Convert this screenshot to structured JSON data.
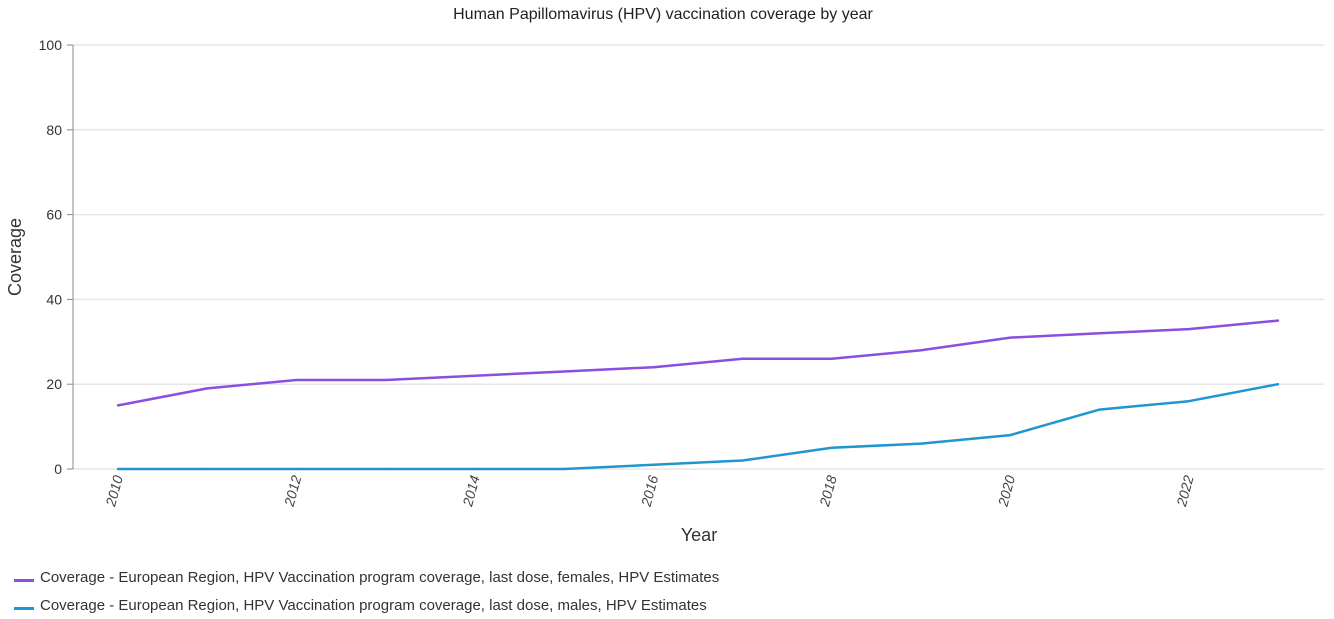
{
  "chart_data": {
    "type": "line",
    "title": "Human Papillomavirus (HPV) vaccination coverage by year",
    "xlabel": "Year",
    "ylabel": "Coverage",
    "x": [
      2010,
      2011,
      2012,
      2013,
      2014,
      2015,
      2016,
      2017,
      2018,
      2019,
      2020,
      2021,
      2022,
      2023
    ],
    "xticks": [
      "2010",
      "2012",
      "2014",
      "2016",
      "2018",
      "2020",
      "2022"
    ],
    "yticks": [
      "0",
      "20",
      "40",
      "60",
      "80",
      "100"
    ],
    "ylim": [
      0,
      100
    ],
    "grid": true,
    "legend_position": "bottom-left",
    "series": [
      {
        "name": "Coverage - European Region, HPV Vaccination program coverage, last dose, females, HPV Estimates",
        "color": "#8a4fe0",
        "values": [
          15,
          19,
          21,
          21,
          22,
          23,
          24,
          26,
          26,
          28,
          31,
          32,
          33,
          35
        ]
      },
      {
        "name": "Coverage - European Region, HPV Vaccination program coverage, last dose, males, HPV Estimates",
        "color": "#1f96cf",
        "values": [
          0,
          0,
          0,
          0,
          0,
          0,
          1,
          2,
          5,
          6,
          8,
          14,
          16,
          20
        ]
      }
    ]
  }
}
